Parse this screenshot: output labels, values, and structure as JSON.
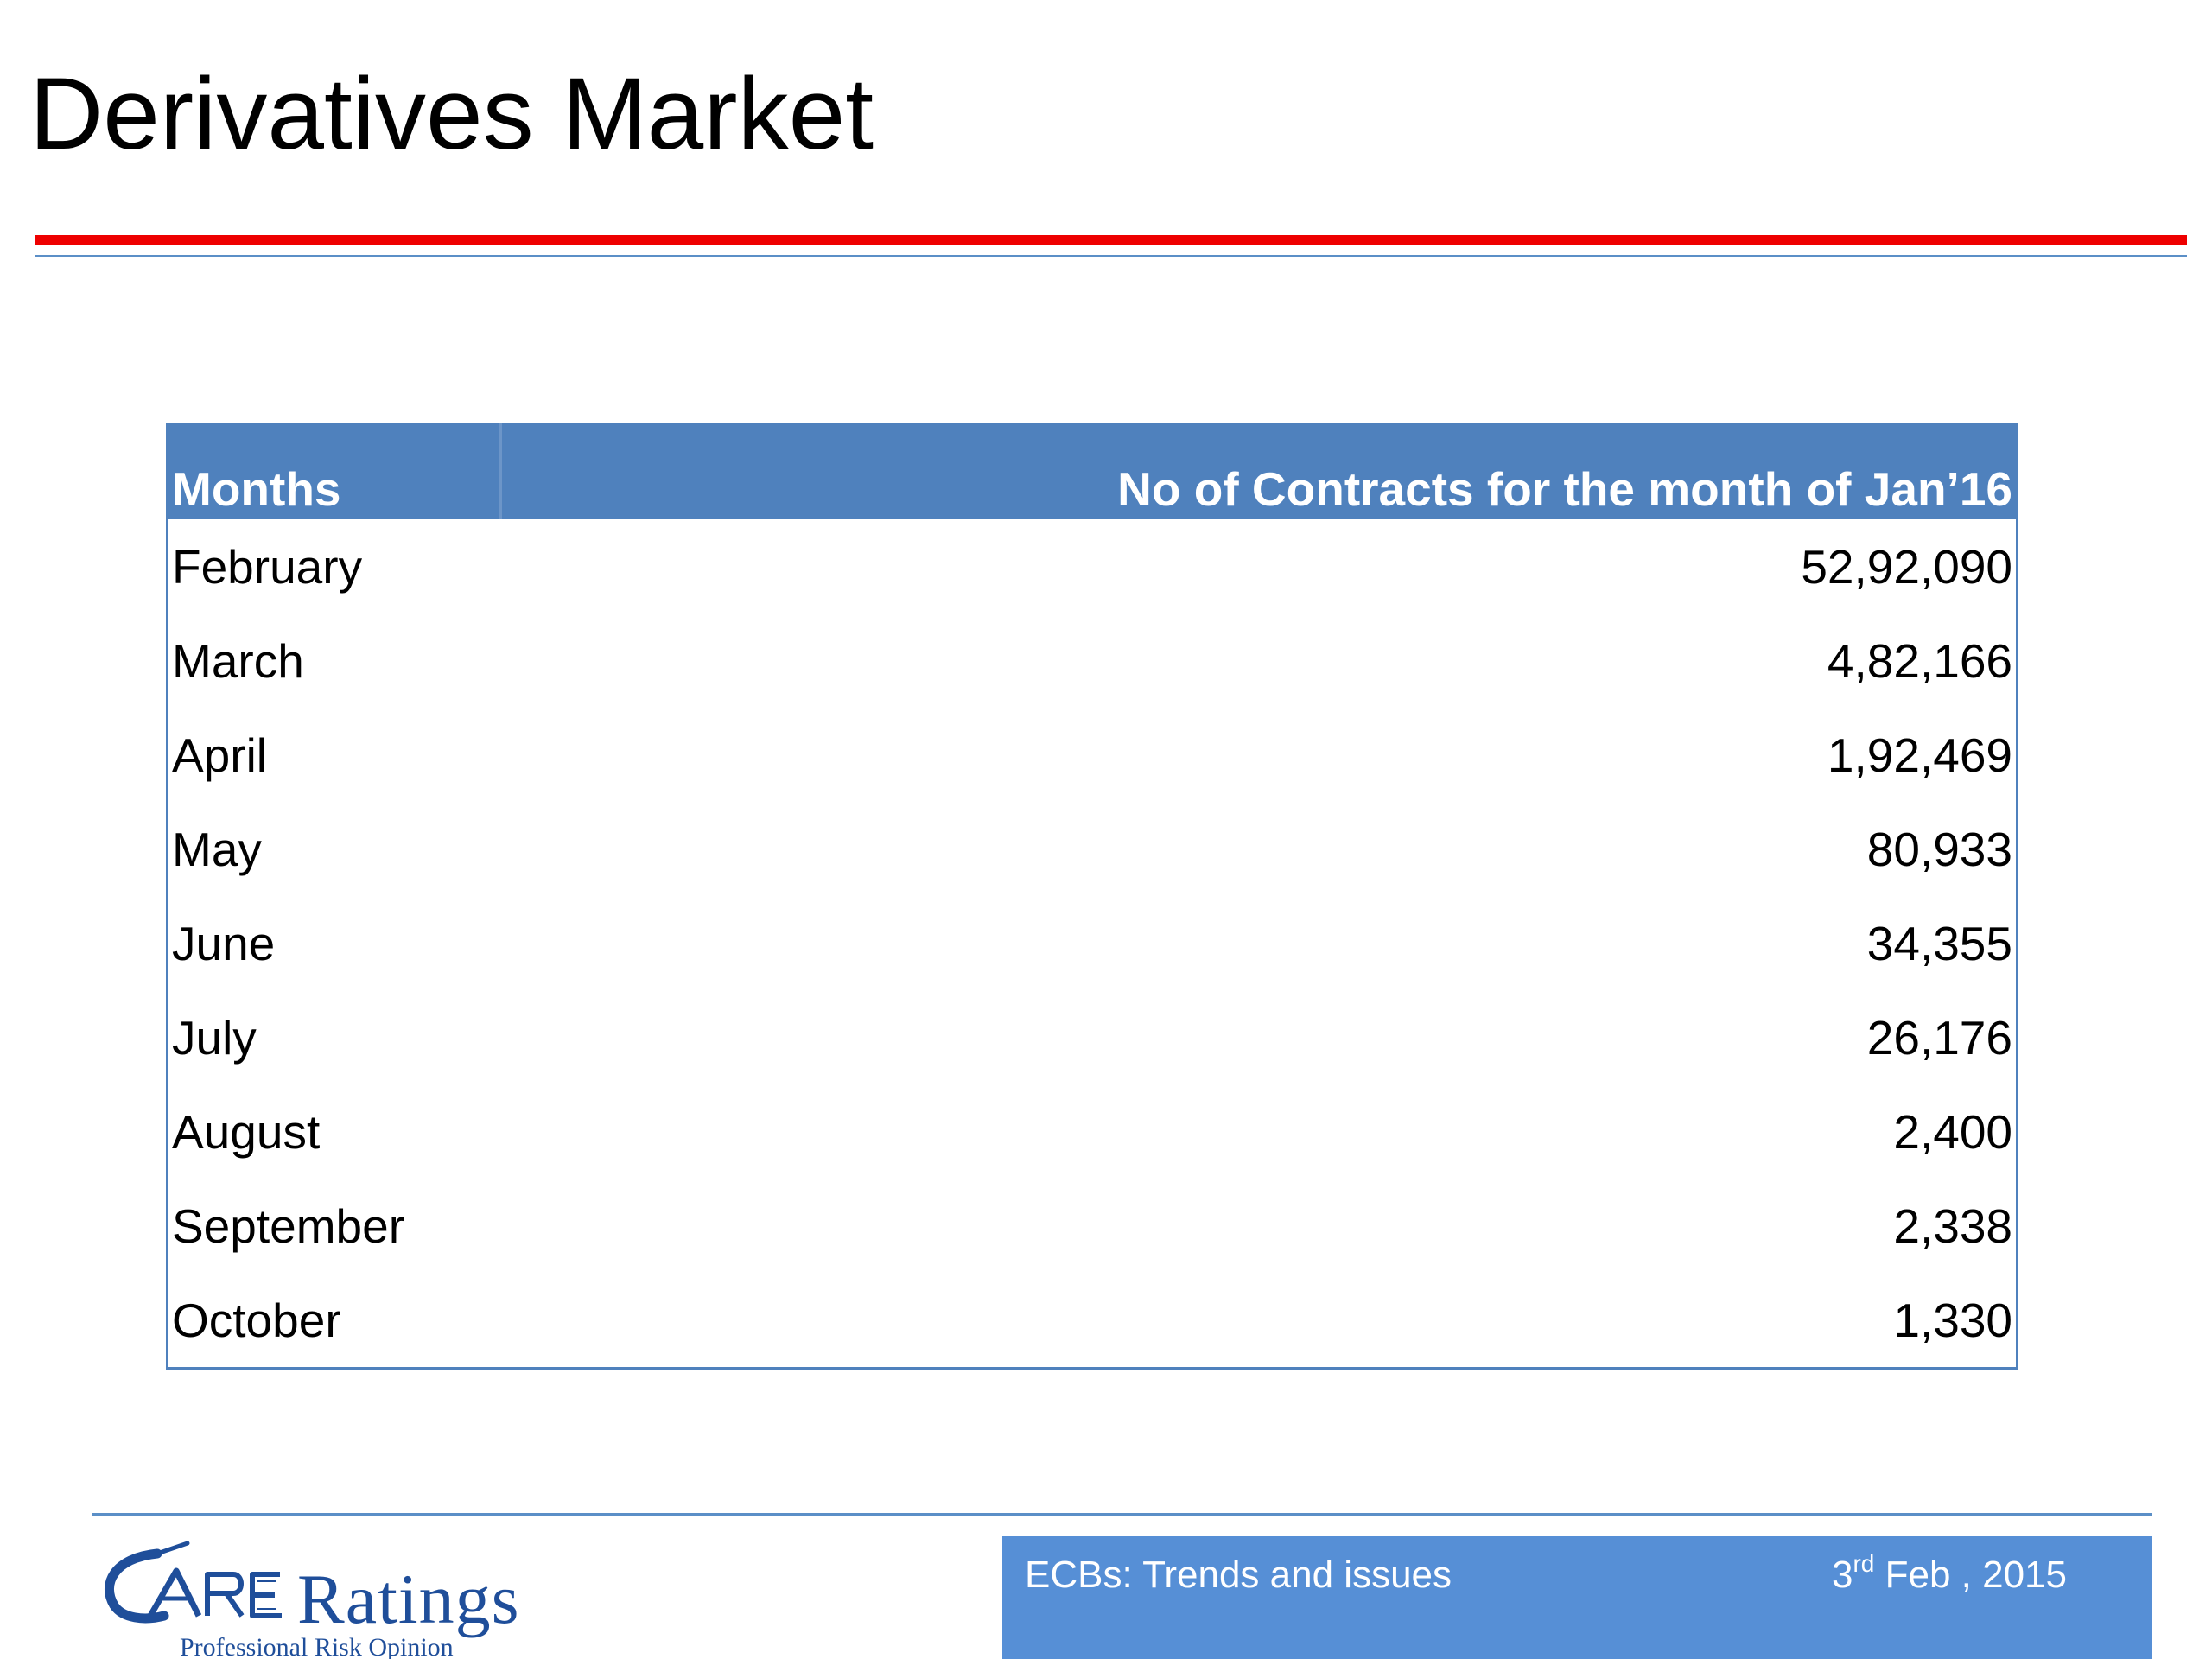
{
  "title": "Derivatives Market",
  "colors": {
    "accent_red": "#ee0000",
    "table_header": "#4f81bd",
    "footer_box": "#568fd6",
    "logo": "#1f4e9a"
  },
  "table": {
    "headers": [
      "Months",
      "No of Contracts for the month of Jan’16"
    ],
    "rows": [
      {
        "month": "February",
        "value": "52,92,090"
      },
      {
        "month": "March",
        "value": "4,82,166"
      },
      {
        "month": "April",
        "value": "1,92,469"
      },
      {
        "month": "May",
        "value": "80,933"
      },
      {
        "month": "June",
        "value": "34,355"
      },
      {
        "month": "July",
        "value": "26,176"
      },
      {
        "month": "August",
        "value": "2,400"
      },
      {
        "month": "September",
        "value": "2,338"
      },
      {
        "month": "October",
        "value": "1,330"
      }
    ]
  },
  "footer": {
    "topic": "ECBs: Trends and issues",
    "date_day": "3",
    "date_suffix": "rd",
    "date_rest": " Feb , 2015"
  },
  "logo": {
    "name": "Ratings",
    "mark": "CARE",
    "tagline": "Professional Risk Opinion"
  }
}
